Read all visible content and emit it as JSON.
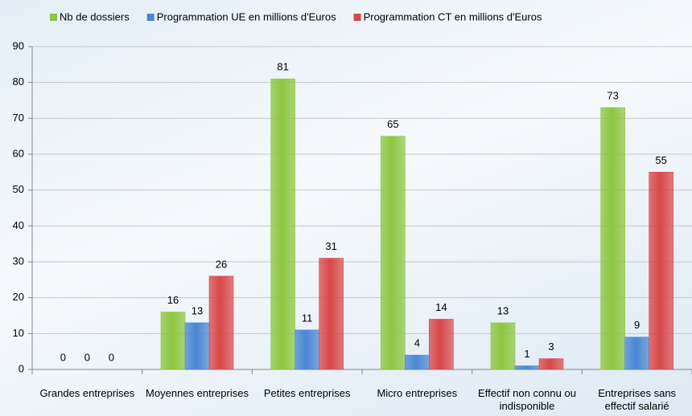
{
  "chart_data": {
    "type": "bar",
    "categories": [
      "Grandes entreprises",
      "Moyennes entreprises",
      "Petites entreprises",
      "Micro entreprises",
      "Effectif non connu ou indisponible",
      "Entreprises sans effectif salarié"
    ],
    "series": [
      {
        "name": "Nb de dossiers",
        "color": "#8cc63f",
        "values": [
          0,
          16,
          81,
          65,
          13,
          73
        ]
      },
      {
        "name": "Programmation UE en millions d'Euros",
        "color": "#4a86d4",
        "values": [
          0,
          13,
          11,
          4,
          1,
          9
        ]
      },
      {
        "name": "Programmation CT en millions d'Euros",
        "color": "#d9484a",
        "values": [
          0,
          26,
          31,
          14,
          3,
          55
        ]
      }
    ],
    "ylim": [
      0,
      90
    ],
    "yticks": [
      0,
      10,
      20,
      30,
      40,
      50,
      60,
      70,
      80,
      90
    ],
    "grid": true,
    "legend": "top"
  }
}
